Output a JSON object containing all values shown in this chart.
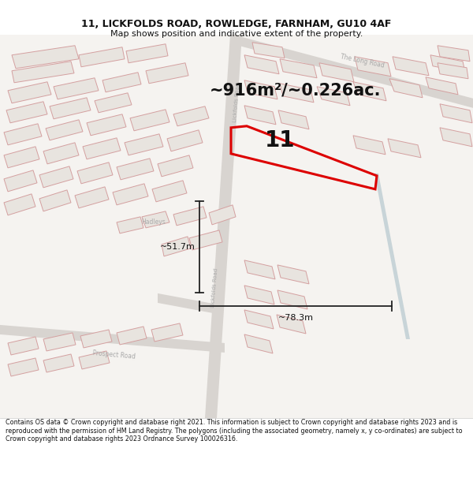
{
  "title_line1": "11, LICKFOLDS ROAD, ROWLEDGE, FARNHAM, GU10 4AF",
  "title_line2": "Map shows position and indicative extent of the property.",
  "area_text": "~916m²/~0.226ac.",
  "plot_number": "11",
  "dim_width": "~78.3m",
  "dim_height": "~51.7m",
  "footer_text": "Contains OS data © Crown copyright and database right 2021. This information is subject to Crown copyright and database rights 2023 and is reproduced with the permission of HM Land Registry. The polygons (including the associated geometry, namely x, y co-ordinates) are subject to Crown copyright and database rights 2023 Ordnance Survey 100026316.",
  "bg_color": "#f5f3f0",
  "road_color_light": "#e0dcd8",
  "road_color_medium": "#d0ccc8",
  "plot_outline_color": "#dd0000",
  "building_fill": "#e8e4df",
  "building_stroke": "#d4a0a0",
  "road_label_color": "#aaaaaa",
  "dim_line_color": "#222222",
  "title_color": "#111111",
  "footer_color": "#111111"
}
